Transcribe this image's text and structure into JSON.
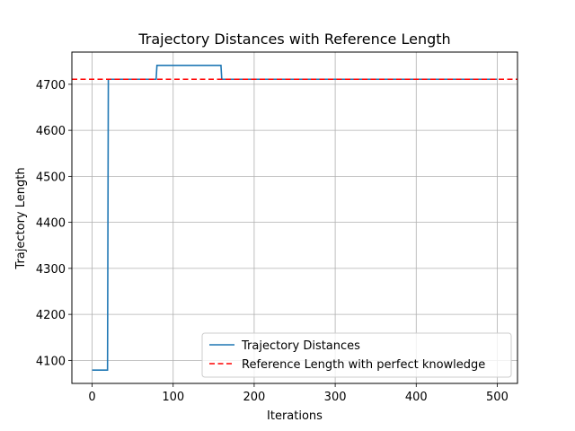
{
  "chart_data": {
    "type": "line",
    "title": "Trajectory Distances with Reference Length",
    "xlabel": "Iterations",
    "ylabel": "Trajectory Length",
    "xlim": [
      -25,
      525
    ],
    "ylim": [
      4050,
      4770
    ],
    "xticks": [
      0,
      100,
      200,
      300,
      400,
      500
    ],
    "yticks": [
      4100,
      4200,
      4300,
      4400,
      4500,
      4600,
      4700
    ],
    "grid": true,
    "legend_position": "lower-right",
    "series": [
      {
        "name": "Trajectory Distances",
        "style": "solid",
        "color": "#1f77b4",
        "x": [
          0,
          19,
          20,
          79,
          80,
          159,
          160,
          500
        ],
        "y": [
          4079,
          4079,
          4711,
          4711,
          4741,
          4741,
          4711,
          4711
        ]
      },
      {
        "name": "Reference Length with perfect knowledge",
        "style": "dashed",
        "color": "#ff0000",
        "x": [
          -25,
          525
        ],
        "y": [
          4711,
          4711
        ]
      }
    ]
  }
}
